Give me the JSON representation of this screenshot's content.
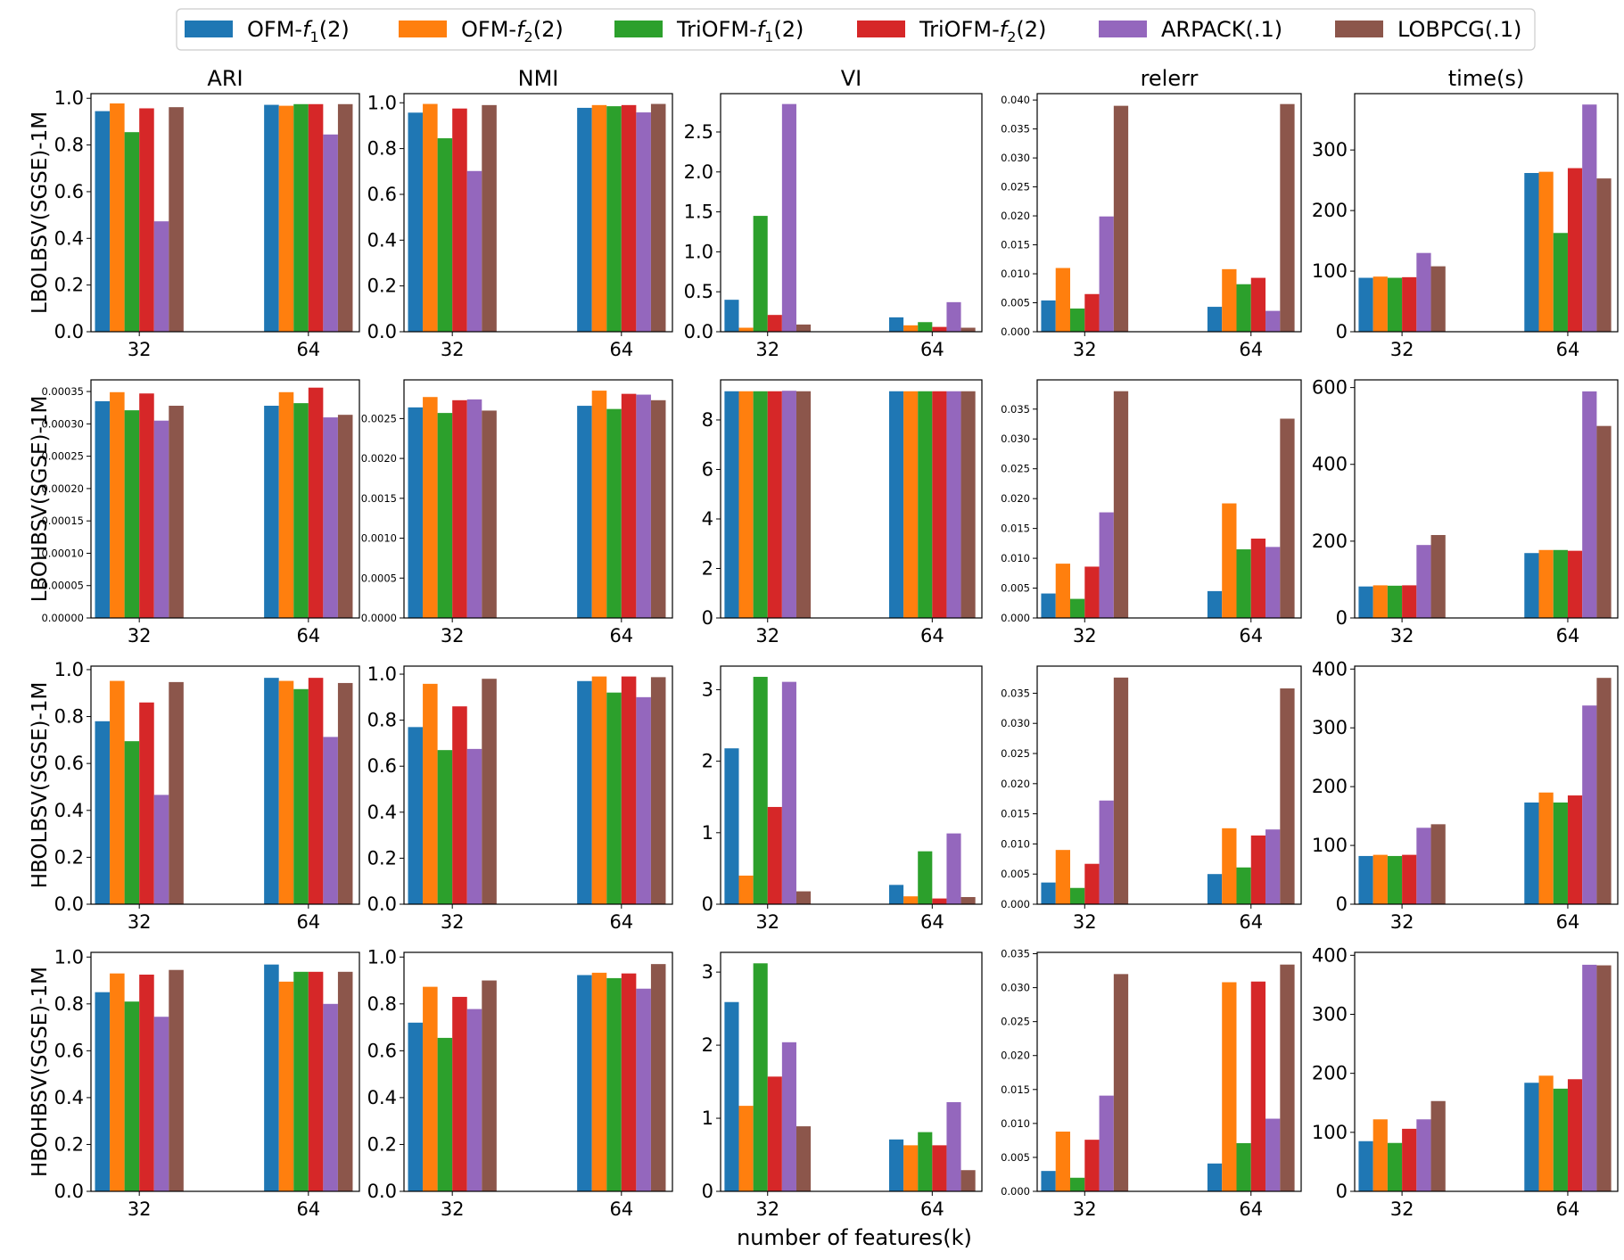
{
  "colors": {
    "OFM-f1": "#1f77b4",
    "OFM-f2": "#ff7f0e",
    "TriOFM-f1": "#2ca02c",
    "TriOFM-f2": "#d62728",
    "ARPACK": "#9467bd",
    "LOBPCG": "#8c564b"
  },
  "legend": {
    "items": [
      {
        "key": "OFM-f1",
        "prefix": "OFM-",
        "f": "f",
        "sub": "1",
        "suffix": "(2)"
      },
      {
        "key": "OFM-f2",
        "prefix": "OFM-",
        "f": "f",
        "sub": "2",
        "suffix": "(2)"
      },
      {
        "key": "TriOFM-f1",
        "prefix": "TriOFM-",
        "f": "f",
        "sub": "1",
        "suffix": "(2)"
      },
      {
        "key": "TriOFM-f2",
        "prefix": "TriOFM-",
        "f": "f",
        "sub": "2",
        "suffix": "(2)"
      },
      {
        "key": "ARPACK",
        "prefix": "ARPACK(.1)",
        "f": "",
        "sub": "",
        "suffix": ""
      },
      {
        "key": "LOBPCG",
        "prefix": "LOBPCG(.1)",
        "f": "",
        "sub": "",
        "suffix": ""
      }
    ]
  },
  "chart_data": {
    "type": "bar",
    "xlabel": "number of features(k)",
    "categories": [
      "32",
      "64"
    ],
    "series_names": [
      "OFM-f1(2)",
      "OFM-f2(2)",
      "TriOFM-f1(2)",
      "TriOFM-f2(2)",
      "ARPACK(.1)",
      "LOBPCG(.1)"
    ],
    "series_keys": [
      "OFM-f1",
      "OFM-f2",
      "TriOFM-f1",
      "TriOFM-f2",
      "ARPACK",
      "LOBPCG"
    ],
    "columns": [
      "ARI",
      "NMI",
      "VI",
      "relerr",
      "time(s)"
    ],
    "rows": [
      {
        "label": "LBOLBSV(SGSE)-1M",
        "panels": [
          {
            "ylim": [
              0,
              1.02
            ],
            "ticks": [
              "0.0",
              "0.2",
              "0.4",
              "0.6",
              "0.8",
              "1.0"
            ],
            "tick_values": [
              0,
              0.2,
              0.4,
              0.6,
              0.8,
              1.0
            ],
            "tick_size": "big",
            "values": [
              [
                0.945,
                0.978,
                0.855,
                0.957,
                0.473,
                0.962
              ],
              [
                0.972,
                0.968,
                0.975,
                0.975,
                0.845,
                0.975
              ]
            ]
          },
          {
            "ylim": [
              0,
              1.04
            ],
            "ticks": [
              "0.0",
              "0.2",
              "0.4",
              "0.6",
              "0.8",
              "1.0"
            ],
            "tick_values": [
              0,
              0.2,
              0.4,
              0.6,
              0.8,
              1.0
            ],
            "tick_size": "big",
            "values": [
              [
                0.957,
                0.995,
                0.845,
                0.975,
                0.702,
                0.99
              ],
              [
                0.978,
                0.99,
                0.985,
                0.99,
                0.958,
                0.995
              ]
            ]
          },
          {
            "ylim": [
              0,
              2.98
            ],
            "ticks": [
              "0.0",
              "0.5",
              "1.0",
              "1.5",
              "2.0",
              "2.5"
            ],
            "tick_values": [
              0,
              0.5,
              1.0,
              1.5,
              2.0,
              2.5
            ],
            "tick_size": "big",
            "values": [
              [
                0.4,
                0.05,
                1.45,
                0.21,
                2.85,
                0.09
              ],
              [
                0.18,
                0.08,
                0.12,
                0.06,
                0.37,
                0.05
              ]
            ]
          },
          {
            "ylim": [
              0,
              0.0411
            ],
            "ticks": [
              "0.000",
              "0.005",
              "0.010",
              "0.015",
              "0.020",
              "0.025",
              "0.030",
              "0.035",
              "0.040"
            ],
            "tick_values": [
              0,
              0.005,
              0.01,
              0.015,
              0.02,
              0.025,
              0.03,
              0.035,
              0.04
            ],
            "tick_size": "small",
            "values": [
              [
                0.0054,
                0.011,
                0.004,
                0.0065,
                0.0199,
                0.039
              ],
              [
                0.0043,
                0.0108,
                0.0082,
                0.0093,
                0.0036,
                0.0393
              ]
            ]
          },
          {
            "ylim": [
              0,
              393
            ],
            "ticks": [
              "0",
              "100",
              "200",
              "300"
            ],
            "tick_values": [
              0,
              100,
              200,
              300
            ],
            "tick_size": "big",
            "values": [
              [
                89,
                91,
                89,
                90,
                130,
                108
              ],
              [
                262,
                264,
                163,
                270,
                375,
                253
              ]
            ]
          }
        ]
      },
      {
        "label": "LBOHBSV(SGSE)-1M",
        "panels": [
          {
            "ylim": [
              0,
              0.000368
            ],
            "ticks": [
              "0.00000",
              "0.00005",
              "0.00010",
              "0.00015",
              "0.00020",
              "0.00025",
              "0.00030",
              "0.00035"
            ],
            "tick_values": [
              0,
              5e-05,
              0.0001,
              0.00015,
              0.0002,
              0.00025,
              0.0003,
              0.00035
            ],
            "tick_size": "small",
            "values": [
              [
                0.000335,
                0.000349,
                0.000321,
                0.000347,
                0.000305,
                0.000328
              ],
              [
                0.000328,
                0.000349,
                0.000332,
                0.000356,
                0.00031,
                0.000314
              ]
            ]
          },
          {
            "ylim": [
              0,
              0.002985
            ],
            "ticks": [
              "0.0000",
              "0.0005",
              "0.0010",
              "0.0015",
              "0.0020",
              "0.0025"
            ],
            "tick_values": [
              0,
              0.0005,
              0.001,
              0.0015,
              0.002,
              0.0025
            ],
            "tick_size": "small",
            "values": [
              [
                0.00264,
                0.00277,
                0.00257,
                0.00273,
                0.00274,
                0.0026
              ],
              [
                0.00266,
                0.00285,
                0.00262,
                0.00281,
                0.0028,
                0.00273
              ]
            ]
          },
          {
            "ylim": [
              0,
              9.62
            ],
            "ticks": [
              "0",
              "2",
              "4",
              "6",
              "8"
            ],
            "tick_values": [
              0,
              2,
              4,
              6,
              8
            ],
            "tick_size": "big",
            "values": [
              [
                9.16,
                9.16,
                9.16,
                9.16,
                9.18,
                9.16
              ],
              [
                9.16,
                9.16,
                9.16,
                9.16,
                9.16,
                9.16
              ]
            ]
          },
          {
            "ylim": [
              0,
              0.0399
            ],
            "ticks": [
              "0.000",
              "0.005",
              "0.010",
              "0.015",
              "0.020",
              "0.025",
              "0.030",
              "0.035"
            ],
            "tick_values": [
              0,
              0.005,
              0.01,
              0.015,
              0.02,
              0.025,
              0.03,
              0.035
            ],
            "tick_size": "small",
            "values": [
              [
                0.0041,
                0.0091,
                0.0032,
                0.0086,
                0.0177,
                0.038
              ],
              [
                0.0045,
                0.0192,
                0.0115,
                0.0133,
                0.0119,
                0.0334
              ]
            ]
          },
          {
            "ylim": [
              0,
              620
            ],
            "ticks": [
              "0",
              "200",
              "400",
              "600"
            ],
            "tick_values": [
              0,
              200,
              400,
              600
            ],
            "tick_size": "big",
            "values": [
              [
                82,
                85,
                84,
                85,
                190,
                216
              ],
              [
                169,
                177,
                177,
                175,
                590,
                500
              ]
            ]
          }
        ]
      },
      {
        "label": "HBOLBSV(SGSE)-1M",
        "panels": [
          {
            "ylim": [
              0,
              1.015
            ],
            "ticks": [
              "0.0",
              "0.2",
              "0.4",
              "0.6",
              "0.8",
              "1.0"
            ],
            "tick_values": [
              0,
              0.2,
              0.4,
              0.6,
              0.8,
              1.0
            ],
            "tick_size": "big",
            "values": [
              [
                0.78,
                0.952,
                0.695,
                0.86,
                0.466,
                0.947
              ],
              [
                0.965,
                0.952,
                0.917,
                0.965,
                0.713,
                0.943
              ]
            ]
          },
          {
            "ylim": [
              0,
              1.035
            ],
            "ticks": [
              "0.0",
              "0.2",
              "0.4",
              "0.6",
              "0.8",
              "1.0"
            ],
            "tick_values": [
              0,
              0.2,
              0.4,
              0.6,
              0.8,
              1.0
            ],
            "tick_size": "big",
            "values": [
              [
                0.77,
                0.958,
                0.67,
                0.86,
                0.675,
                0.98
              ],
              [
                0.97,
                0.99,
                0.92,
                0.99,
                0.9,
                0.987
              ]
            ]
          },
          {
            "ylim": [
              0,
              3.33
            ],
            "ticks": [
              "0",
              "1",
              "2",
              "3"
            ],
            "tick_values": [
              0,
              1,
              2,
              3
            ],
            "tick_size": "big",
            "values": [
              [
                2.18,
                0.4,
                3.18,
                1.36,
                3.11,
                0.18
              ],
              [
                0.27,
                0.11,
                0.74,
                0.08,
                0.99,
                0.1
              ]
            ]
          },
          {
            "ylim": [
              0,
              0.0395
            ],
            "ticks": [
              "0.000",
              "0.005",
              "0.010",
              "0.015",
              "0.020",
              "0.025",
              "0.030",
              "0.035"
            ],
            "tick_values": [
              0,
              0.005,
              0.01,
              0.015,
              0.02,
              0.025,
              0.03,
              0.035
            ],
            "tick_size": "small",
            "values": [
              [
                0.0036,
                0.009,
                0.0027,
                0.0067,
                0.0172,
                0.0376
              ],
              [
                0.005,
                0.0126,
                0.0061,
                0.0114,
                0.0124,
                0.0358
              ]
            ]
          },
          {
            "ylim": [
              0,
              405
            ],
            "ticks": [
              "0",
              "100",
              "200",
              "300",
              "400"
            ],
            "tick_values": [
              0,
              100,
              200,
              300,
              400
            ],
            "tick_size": "big",
            "values": [
              [
                82,
                84,
                82,
                84,
                130,
                136
              ],
              [
                173,
                190,
                173,
                185,
                338,
                385
              ]
            ]
          }
        ]
      },
      {
        "label": "HBOHBSV(SGSE)-1M",
        "panels": [
          {
            "ylim": [
              0,
              1.02
            ],
            "ticks": [
              "0.0",
              "0.2",
              "0.4",
              "0.6",
              "0.8",
              "1.0"
            ],
            "tick_values": [
              0,
              0.2,
              0.4,
              0.6,
              0.8,
              1.0
            ],
            "tick_size": "big",
            "values": [
              [
                0.85,
                0.93,
                0.81,
                0.925,
                0.745,
                0.945
              ],
              [
                0.968,
                0.895,
                0.937,
                0.937,
                0.8,
                0.937
              ]
            ]
          },
          {
            "ylim": [
              0,
              1.02
            ],
            "ticks": [
              "0.0",
              "0.2",
              "0.4",
              "0.6",
              "0.8",
              "1.0"
            ],
            "tick_values": [
              0,
              0.2,
              0.4,
              0.6,
              0.8,
              1.0
            ],
            "tick_size": "big",
            "values": [
              [
                0.72,
                0.873,
                0.655,
                0.83,
                0.778,
                0.9
              ],
              [
                0.923,
                0.933,
                0.91,
                0.93,
                0.865,
                0.97
              ]
            ]
          },
          {
            "ylim": [
              0,
              3.27
            ],
            "ticks": [
              "0",
              "1",
              "2",
              "3"
            ],
            "tick_values": [
              0,
              1,
              2,
              3
            ],
            "tick_size": "big",
            "values": [
              [
                2.59,
                1.17,
                3.12,
                1.57,
                2.04,
                0.89
              ],
              [
                0.71,
                0.63,
                0.81,
                0.63,
                1.22,
                0.29
              ]
            ]
          },
          {
            "ylim": [
              0,
              0.0352
            ],
            "ticks": [
              "0.000",
              "0.005",
              "0.010",
              "0.015",
              "0.020",
              "0.025",
              "0.030",
              "0.035"
            ],
            "tick_values": [
              0,
              0.005,
              0.01,
              0.015,
              0.02,
              0.025,
              0.03,
              0.035
            ],
            "tick_size": "small",
            "values": [
              [
                0.003,
                0.0088,
                0.002,
                0.0076,
                0.0141,
                0.032
              ],
              [
                0.0041,
                0.0308,
                0.0071,
                0.0309,
                0.0107,
                0.0334
              ]
            ]
          },
          {
            "ylim": [
              0,
              405
            ],
            "ticks": [
              "0",
              "100",
              "200",
              "300",
              "400"
            ],
            "tick_values": [
              0,
              100,
              200,
              300,
              400
            ],
            "tick_size": "big",
            "values": [
              [
                85,
                122,
                82,
                106,
                122,
                153
              ],
              [
                184,
                196,
                174,
                190,
                384,
                383
              ]
            ]
          }
        ]
      }
    ]
  }
}
